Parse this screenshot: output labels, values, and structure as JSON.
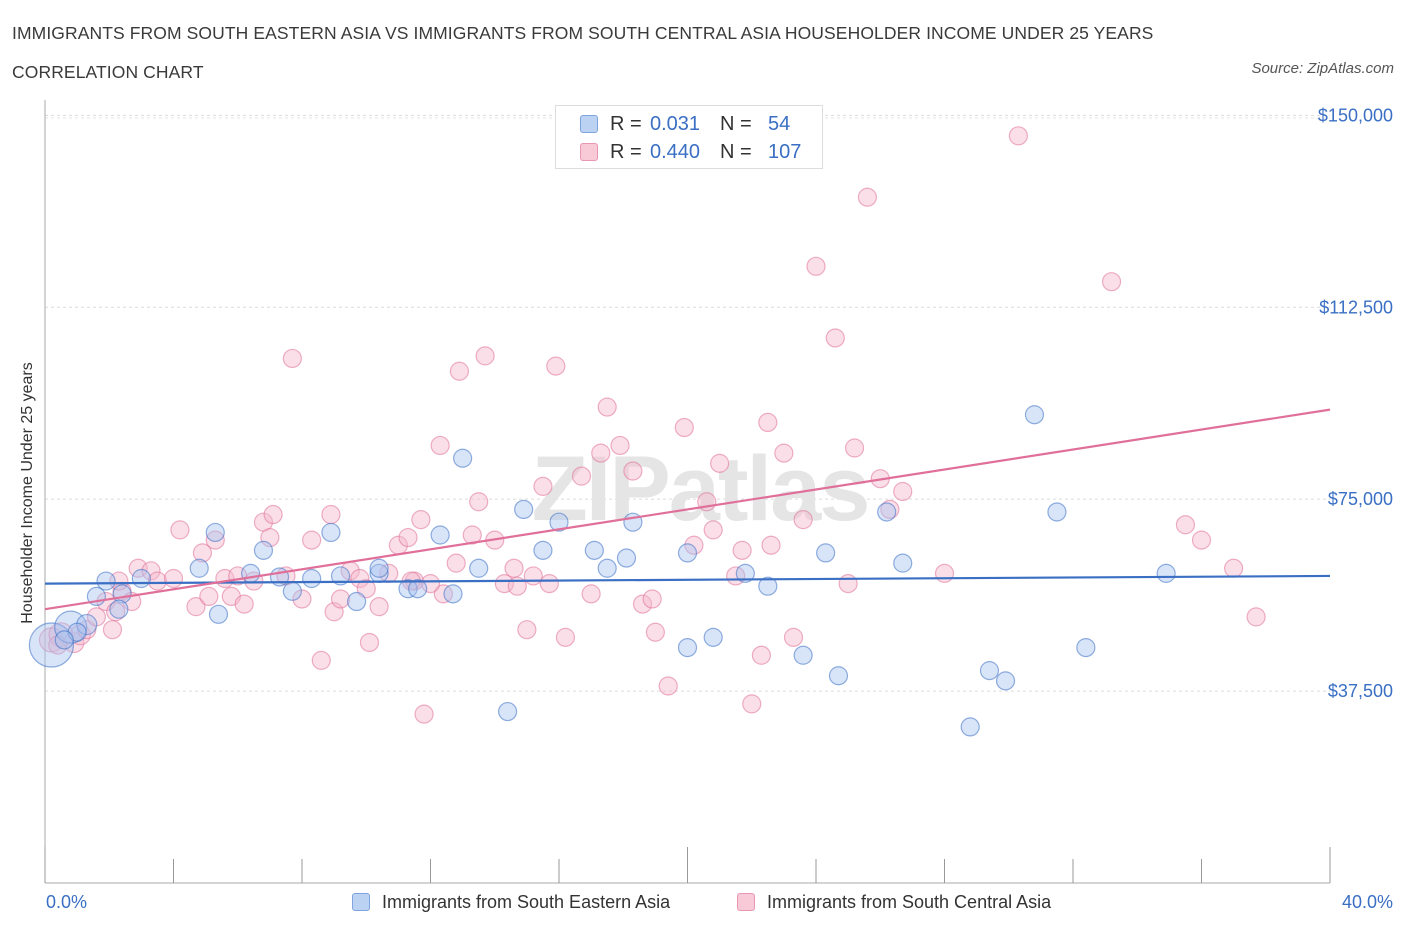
{
  "title": "IMMIGRANTS FROM SOUTH EASTERN ASIA VS IMMIGRANTS FROM SOUTH CENTRAL ASIA HOUSEHOLDER INCOME UNDER 25 YEARS CORRELATION CHART",
  "source": "Source: ZipAtlas.com",
  "watermark": "ZIPatlas",
  "colors": {
    "blue": "#3a6fc4",
    "blue_fill": "#a9c4ef",
    "pink": "#e07099",
    "pink_fill": "#f5b8cb",
    "tick_label": "#3a6fc4"
  },
  "legend": {
    "rows": [
      {
        "r_label": "R =",
        "r_value": "0.031",
        "n_label": "N =",
        "n_value": "54"
      },
      {
        "r_label": "R =",
        "r_value": "0.440",
        "n_label": "N =",
        "n_value": "107"
      }
    ],
    "series_names": [
      "Immigrants from South Eastern Asia",
      "Immigrants from South Central Asia"
    ]
  },
  "chart_data": {
    "type": "scatter",
    "title": "IMMIGRANTS FROM SOUTH EASTERN ASIA VS IMMIGRANTS FROM SOUTH CENTRAL ASIA HOUSEHOLDER INCOME UNDER 25 YEARS CORRELATION CHART",
    "xlabel": "",
    "ylabel": "Householder Income Under 25 years",
    "xlim": [
      0,
      40
    ],
    "ylim": [
      0,
      153000
    ],
    "x_tick_labels": [
      "0.0%",
      "40.0%"
    ],
    "y_ticks": [
      37500,
      75000,
      112500,
      150000
    ],
    "y_tick_labels": [
      "$37,500",
      "$75,000",
      "$112,500",
      "$150,000"
    ],
    "grid": true,
    "legend_position": "top-center",
    "series": [
      {
        "name": "Immigrants from South Eastern Asia",
        "color": "#3a6fc4",
        "fill": "#a9c4ef",
        "r": 0.031,
        "n": 54,
        "trend": {
          "x": [
            0,
            40
          ],
          "y": [
            58500,
            60000
          ]
        },
        "points": [
          [
            0.2,
            46500,
            22
          ],
          [
            0.8,
            50000,
            16
          ],
          [
            1.3,
            50500,
            10
          ],
          [
            1.6,
            56000,
            9
          ],
          [
            1.9,
            59000,
            9
          ],
          [
            2.4,
            56500,
            9
          ],
          [
            2.3,
            53500,
            9
          ],
          [
            3.0,
            59500,
            9
          ],
          [
            4.8,
            61500,
            9
          ],
          [
            5.4,
            52500,
            9
          ],
          [
            5.3,
            68500,
            9
          ],
          [
            6.4,
            60500,
            9
          ],
          [
            6.8,
            65000,
            9
          ],
          [
            7.3,
            59800,
            9
          ],
          [
            7.7,
            57000,
            9
          ],
          [
            8.3,
            59500,
            9
          ],
          [
            8.9,
            68500,
            9
          ],
          [
            9.2,
            60000,
            9
          ],
          [
            9.7,
            55000,
            9
          ],
          [
            10.4,
            60500,
            9
          ],
          [
            10.4,
            61500,
            9
          ],
          [
            11.3,
            57500,
            9
          ],
          [
            11.6,
            57500,
            9
          ],
          [
            12.3,
            68000,
            9
          ],
          [
            12.7,
            56500,
            9
          ],
          [
            13.0,
            83000,
            9
          ],
          [
            13.5,
            61500,
            9
          ],
          [
            14.4,
            33500,
            9
          ],
          [
            14.9,
            73000,
            9
          ],
          [
            15.5,
            65000,
            9
          ],
          [
            16.0,
            70500,
            9
          ],
          [
            17.1,
            65000,
            9
          ],
          [
            17.5,
            61500,
            9
          ],
          [
            18.1,
            63500,
            9
          ],
          [
            18.3,
            70500,
            9
          ],
          [
            20.0,
            64500,
            9
          ],
          [
            20.0,
            46000,
            9
          ],
          [
            20.8,
            48000,
            9
          ],
          [
            21.8,
            60500,
            9
          ],
          [
            22.5,
            58000,
            9
          ],
          [
            23.6,
            44500,
            9
          ],
          [
            24.3,
            64500,
            9
          ],
          [
            24.7,
            40500,
            9
          ],
          [
            26.2,
            72500,
            9
          ],
          [
            26.7,
            62500,
            9
          ],
          [
            28.8,
            30500,
            9
          ],
          [
            29.4,
            41500,
            9
          ],
          [
            29.9,
            39500,
            9
          ],
          [
            30.8,
            91500,
            9
          ],
          [
            31.5,
            72500,
            9
          ],
          [
            32.4,
            46000,
            9
          ],
          [
            34.9,
            60500,
            9
          ],
          [
            1.0,
            49000,
            9
          ],
          [
            0.6,
            47500,
            9
          ]
        ]
      },
      {
        "name": "Immigrants from South Central Asia",
        "color": "#e07099",
        "fill": "#f5b8cb",
        "r": 0.44,
        "n": 107,
        "trend": {
          "x": [
            0,
            40
          ],
          "y": [
            53500,
            92500
          ]
        },
        "points": [
          [
            0.2,
            47500,
            12
          ],
          [
            0.5,
            48500,
            12
          ],
          [
            0.9,
            47000,
            10
          ],
          [
            1.1,
            48500,
            10
          ],
          [
            1.3,
            49500,
            9
          ],
          [
            0.4,
            46500,
            9
          ],
          [
            1.6,
            52000,
            9
          ],
          [
            1.9,
            55000,
            9
          ],
          [
            2.2,
            53000,
            9
          ],
          [
            2.1,
            49500,
            9
          ],
          [
            2.4,
            57000,
            9
          ],
          [
            2.7,
            55000,
            9
          ],
          [
            2.3,
            59000,
            9
          ],
          [
            2.9,
            61500,
            9
          ],
          [
            3.3,
            61000,
            9
          ],
          [
            3.5,
            59000,
            9
          ],
          [
            4.0,
            59500,
            9
          ],
          [
            4.2,
            69000,
            9
          ],
          [
            4.7,
            54000,
            9
          ],
          [
            4.9,
            64500,
            9
          ],
          [
            5.1,
            56000,
            9
          ],
          [
            5.3,
            67000,
            9
          ],
          [
            5.6,
            59500,
            9
          ],
          [
            5.8,
            56000,
            9
          ],
          [
            6.0,
            60000,
            9
          ],
          [
            6.2,
            54500,
            9
          ],
          [
            6.5,
            59000,
            9
          ],
          [
            6.8,
            70500,
            9
          ],
          [
            7.0,
            67500,
            9
          ],
          [
            7.1,
            72000,
            9
          ],
          [
            7.5,
            60000,
            9
          ],
          [
            7.7,
            102500,
            9
          ],
          [
            8.0,
            55500,
            9
          ],
          [
            8.3,
            67000,
            9
          ],
          [
            8.6,
            43500,
            9
          ],
          [
            8.9,
            72000,
            9
          ],
          [
            9.0,
            53000,
            9
          ],
          [
            9.2,
            55500,
            9
          ],
          [
            9.5,
            61000,
            9
          ],
          [
            9.8,
            59500,
            9
          ],
          [
            10.0,
            57500,
            9
          ],
          [
            10.1,
            47000,
            9
          ],
          [
            10.4,
            54000,
            9
          ],
          [
            10.7,
            60500,
            9
          ],
          [
            11.0,
            66000,
            9
          ],
          [
            11.3,
            67500,
            9
          ],
          [
            11.5,
            59000,
            9
          ],
          [
            11.7,
            71000,
            9
          ],
          [
            11.4,
            59000,
            9
          ],
          [
            11.8,
            33000,
            9
          ],
          [
            12.3,
            85500,
            9
          ],
          [
            12.4,
            56500,
            9
          ],
          [
            12.0,
            58500,
            9
          ],
          [
            12.8,
            62500,
            9
          ],
          [
            12.9,
            100000,
            9
          ],
          [
            13.3,
            68000,
            9
          ],
          [
            13.5,
            74500,
            9
          ],
          [
            13.7,
            103000,
            9
          ],
          [
            14.0,
            67000,
            9
          ],
          [
            14.3,
            58500,
            9
          ],
          [
            14.6,
            61500,
            9
          ],
          [
            14.7,
            58000,
            9
          ],
          [
            15.0,
            49500,
            9
          ],
          [
            15.2,
            60000,
            9
          ],
          [
            15.5,
            77500,
            9
          ],
          [
            15.7,
            58500,
            9
          ],
          [
            15.9,
            101000,
            9
          ],
          [
            16.2,
            48000,
            9
          ],
          [
            16.7,
            79500,
            9
          ],
          [
            17.0,
            56500,
            9
          ],
          [
            17.3,
            84000,
            9
          ],
          [
            17.5,
            93000,
            9
          ],
          [
            17.9,
            85500,
            9
          ],
          [
            18.3,
            80500,
            9
          ],
          [
            18.6,
            54500,
            9
          ],
          [
            18.9,
            55500,
            9
          ],
          [
            19.0,
            49000,
            9
          ],
          [
            19.4,
            38500,
            9
          ],
          [
            19.9,
            89000,
            9
          ],
          [
            20.2,
            66000,
            9
          ],
          [
            20.6,
            74500,
            9
          ],
          [
            20.8,
            69000,
            9
          ],
          [
            21.0,
            82000,
            9
          ],
          [
            21.5,
            60000,
            9
          ],
          [
            21.7,
            65000,
            9
          ],
          [
            22.0,
            35000,
            9
          ],
          [
            22.3,
            44500,
            9
          ],
          [
            22.5,
            90000,
            9
          ],
          [
            22.6,
            66000,
            9
          ],
          [
            23.0,
            84000,
            9
          ],
          [
            23.3,
            48000,
            9
          ],
          [
            23.6,
            71000,
            9
          ],
          [
            24.0,
            120500,
            9
          ],
          [
            24.6,
            106500,
            9
          ],
          [
            25.0,
            58500,
            9
          ],
          [
            25.2,
            85000,
            9
          ],
          [
            25.6,
            134000,
            9
          ],
          [
            26.0,
            79000,
            9
          ],
          [
            26.3,
            73000,
            9
          ],
          [
            26.7,
            76500,
            9
          ],
          [
            28.0,
            60500,
            9
          ],
          [
            30.3,
            146000,
            9
          ],
          [
            33.2,
            117500,
            9
          ],
          [
            35.5,
            70000,
            9
          ],
          [
            36.0,
            67000,
            9
          ],
          [
            37.0,
            61500,
            9
          ],
          [
            37.7,
            52000,
            9
          ]
        ]
      }
    ]
  }
}
